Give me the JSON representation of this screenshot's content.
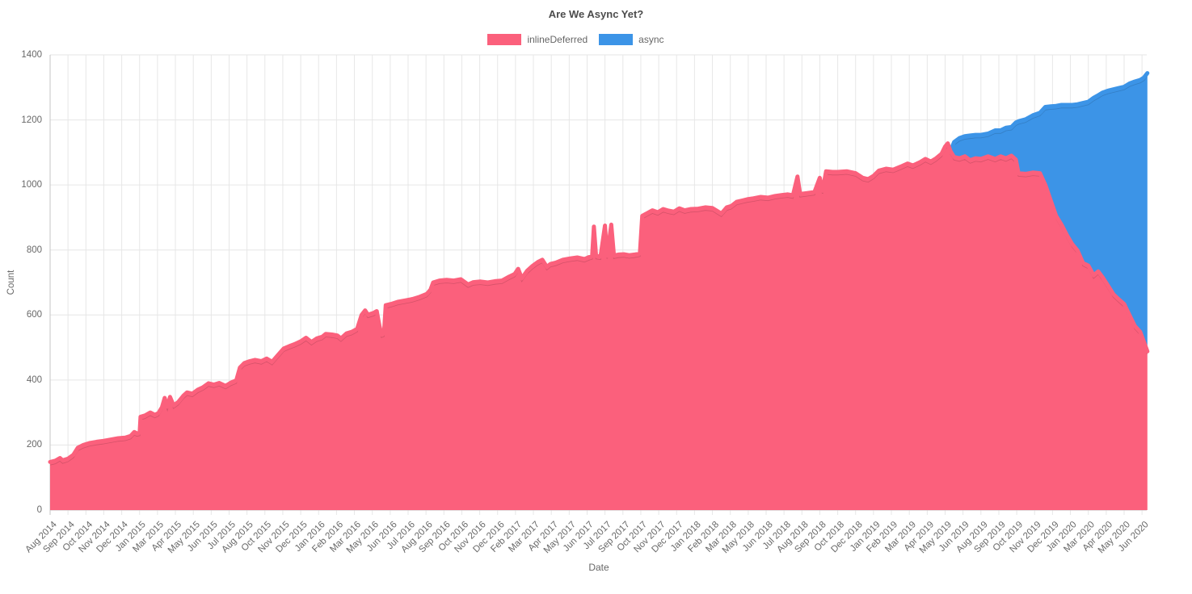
{
  "title": "Are We Async Yet?",
  "legend": [
    {
      "label": "inlineDeferred",
      "color": "#FB607C"
    },
    {
      "label": "async",
      "color": "#3C94E7"
    }
  ],
  "axes": {
    "x_title": "Date",
    "y_title": "Count",
    "y_ticks": [
      0,
      200,
      400,
      600,
      800,
      1000,
      1200,
      1400
    ],
    "x_tick_labels": [
      "Aug 2014",
      "Sep 2014",
      "Oct 2014",
      "Nov 2014",
      "Dec 2014",
      "Jan 2015",
      "Mar 2015",
      "Apr 2015",
      "May 2015",
      "Jun 2015",
      "Jul 2015",
      "Aug 2015",
      "Oct 2015",
      "Nov 2015",
      "Dec 2015",
      "Jan 2016",
      "Feb 2016",
      "Mar 2016",
      "May 2016",
      "Jun 2016",
      "Jul 2016",
      "Aug 2016",
      "Sep 2016",
      "Oct 2016",
      "Nov 2016",
      "Dec 2016",
      "Feb 2017",
      "Mar 2017",
      "Apr 2017",
      "May 2017",
      "Jun 2017",
      "Jul 2017",
      "Sep 2017",
      "Oct 2017",
      "Nov 2017",
      "Dec 2017",
      "Jan 2018",
      "Feb 2018",
      "Mar 2018",
      "May 2018",
      "Jun 2018",
      "Jul 2018",
      "Aug 2018",
      "Sep 2018",
      "Oct 2018",
      "Dec 2018",
      "Jan 2019",
      "Feb 2019",
      "Mar 2019",
      "Apr 2019",
      "May 2019",
      "Jun 2019",
      "Aug 2019",
      "Sep 2019",
      "Oct 2019",
      "Nov 2019",
      "Dec 2019",
      "Jan 2020",
      "Mar 2020",
      "Apr 2020",
      "May 2020",
      "Jun 2020"
    ]
  },
  "chart_data": {
    "type": "area",
    "stacked": true,
    "title": "Are We Async Yet?",
    "xlabel": "Date",
    "ylabel": "Count",
    "ylim": [
      0,
      1400
    ],
    "grid": true,
    "legend_position": "top",
    "x_unit": "tick index (0 = Aug 2014 tick, 61 = Jun 2020 tick; fractional = within interval)",
    "series": [
      {
        "name": "inlineDeferred",
        "color": "#FB607C",
        "points": [
          [
            0,
            148
          ],
          [
            0.3,
            152
          ],
          [
            0.55,
            160
          ],
          [
            0.7,
            153
          ],
          [
            1.0,
            158
          ],
          [
            1.3,
            170
          ],
          [
            1.55,
            192
          ],
          [
            1.85,
            200
          ],
          [
            2.2,
            206
          ],
          [
            2.6,
            210
          ],
          [
            3.0,
            213
          ],
          [
            3.4,
            217
          ],
          [
            3.8,
            221
          ],
          [
            4.2,
            223
          ],
          [
            4.5,
            228
          ],
          [
            4.7,
            240
          ],
          [
            4.85,
            236
          ],
          [
            5.0,
            238
          ],
          [
            5.05,
            287
          ],
          [
            5.3,
            291
          ],
          [
            5.6,
            300
          ],
          [
            5.85,
            293
          ],
          [
            6.05,
            298
          ],
          [
            6.25,
            316
          ],
          [
            6.4,
            345
          ],
          [
            6.55,
            318
          ],
          [
            6.7,
            348
          ],
          [
            6.9,
            322
          ],
          [
            7.15,
            332
          ],
          [
            7.45,
            352
          ],
          [
            7.65,
            362
          ],
          [
            7.95,
            358
          ],
          [
            8.25,
            370
          ],
          [
            8.55,
            378
          ],
          [
            8.85,
            390
          ],
          [
            9.15,
            386
          ],
          [
            9.45,
            391
          ],
          [
            9.8,
            382
          ],
          [
            10.1,
            392
          ],
          [
            10.4,
            399
          ],
          [
            10.6,
            438
          ],
          [
            10.85,
            452
          ],
          [
            11.15,
            458
          ],
          [
            11.45,
            462
          ],
          [
            11.8,
            458
          ],
          [
            12.1,
            466
          ],
          [
            12.4,
            456
          ],
          [
            12.75,
            478
          ],
          [
            13.05,
            497
          ],
          [
            13.35,
            504
          ],
          [
            13.65,
            510
          ],
          [
            14.0,
            519
          ],
          [
            14.3,
            530
          ],
          [
            14.6,
            517
          ],
          [
            14.9,
            528
          ],
          [
            15.2,
            533
          ],
          [
            15.4,
            542
          ],
          [
            15.75,
            540
          ],
          [
            16.05,
            537
          ],
          [
            16.25,
            528
          ],
          [
            16.55,
            543
          ],
          [
            16.85,
            548
          ],
          [
            17.15,
            557
          ],
          [
            17.4,
            600
          ],
          [
            17.6,
            614
          ],
          [
            17.75,
            601
          ],
          [
            18.05,
            606
          ],
          [
            18.25,
            612
          ],
          [
            18.4,
            566
          ],
          [
            18.52,
            540
          ],
          [
            18.65,
            543
          ],
          [
            18.75,
            630
          ],
          [
            19.05,
            634
          ],
          [
            19.45,
            641
          ],
          [
            19.85,
            645
          ],
          [
            20.25,
            649
          ],
          [
            20.65,
            656
          ],
          [
            21.05,
            665
          ],
          [
            21.25,
            678
          ],
          [
            21.4,
            700
          ],
          [
            21.75,
            706
          ],
          [
            22.15,
            708
          ],
          [
            22.55,
            706
          ],
          [
            22.95,
            710
          ],
          [
            23.35,
            694
          ],
          [
            23.65,
            701
          ],
          [
            24.05,
            703
          ],
          [
            24.45,
            700
          ],
          [
            24.85,
            704
          ],
          [
            25.25,
            706
          ],
          [
            25.65,
            718
          ],
          [
            25.95,
            726
          ],
          [
            26.15,
            742
          ],
          [
            26.35,
            713
          ],
          [
            26.65,
            736
          ],
          [
            26.95,
            751
          ],
          [
            27.25,
            763
          ],
          [
            27.5,
            770
          ],
          [
            27.75,
            748
          ],
          [
            27.95,
            757
          ],
          [
            28.25,
            761
          ],
          [
            28.65,
            770
          ],
          [
            29.05,
            774
          ],
          [
            29.45,
            777
          ],
          [
            29.85,
            772
          ],
          [
            30.1,
            778
          ],
          [
            30.28,
            781
          ],
          [
            30.38,
            872
          ],
          [
            30.5,
            782
          ],
          [
            30.75,
            780
          ],
          [
            31.0,
            875
          ],
          [
            31.12,
            782
          ],
          [
            31.35,
            878
          ],
          [
            31.5,
            783
          ],
          [
            31.75,
            786
          ],
          [
            32.05,
            787
          ],
          [
            32.35,
            784
          ],
          [
            32.65,
            786
          ],
          [
            32.95,
            789
          ],
          [
            33.08,
            905
          ],
          [
            33.35,
            913
          ],
          [
            33.65,
            922
          ],
          [
            33.95,
            916
          ],
          [
            34.25,
            926
          ],
          [
            34.55,
            921
          ],
          [
            34.85,
            918
          ],
          [
            35.15,
            928
          ],
          [
            35.45,
            922
          ],
          [
            35.8,
            926
          ],
          [
            36.2,
            927
          ],
          [
            36.6,
            931
          ],
          [
            37.0,
            929
          ],
          [
            37.5,
            912
          ],
          [
            37.8,
            931
          ],
          [
            38.05,
            935
          ],
          [
            38.35,
            948
          ],
          [
            38.65,
            952
          ],
          [
            38.95,
            956
          ],
          [
            39.3,
            959
          ],
          [
            39.7,
            963
          ],
          [
            40.1,
            961
          ],
          [
            40.5,
            966
          ],
          [
            40.9,
            969
          ],
          [
            41.2,
            971
          ],
          [
            41.5,
            968
          ],
          [
            41.75,
            1026
          ],
          [
            41.9,
            972
          ],
          [
            42.3,
            975
          ],
          [
            42.7,
            978
          ],
          [
            43.0,
            1022
          ],
          [
            43.15,
            982
          ],
          [
            43.35,
            1042
          ],
          [
            43.7,
            1040
          ],
          [
            44.0,
            1040
          ],
          [
            44.5,
            1042
          ],
          [
            45.0,
            1036
          ],
          [
            45.4,
            1022
          ],
          [
            45.7,
            1018
          ],
          [
            46.0,
            1028
          ],
          [
            46.3,
            1044
          ],
          [
            46.7,
            1050
          ],
          [
            47.1,
            1047
          ],
          [
            47.5,
            1056
          ],
          [
            47.9,
            1066
          ],
          [
            48.2,
            1060
          ],
          [
            48.6,
            1070
          ],
          [
            48.9,
            1080
          ],
          [
            49.2,
            1072
          ],
          [
            49.5,
            1082
          ],
          [
            49.8,
            1096
          ],
          [
            50.0,
            1118
          ],
          [
            50.15,
            1128
          ],
          [
            50.3,
            1104
          ],
          [
            50.5,
            1086
          ],
          [
            50.8,
            1082
          ],
          [
            51.1,
            1088
          ],
          [
            51.4,
            1076
          ],
          [
            51.7,
            1082
          ],
          [
            52.0,
            1080
          ],
          [
            52.4,
            1088
          ],
          [
            52.8,
            1080
          ],
          [
            53.1,
            1088
          ],
          [
            53.4,
            1082
          ],
          [
            53.7,
            1090
          ],
          [
            53.95,
            1078
          ],
          [
            54.1,
            1036
          ],
          [
            54.5,
            1034
          ],
          [
            54.9,
            1038
          ],
          [
            55.3,
            1036
          ],
          [
            55.6,
            1000
          ],
          [
            55.9,
            952
          ],
          [
            56.2,
            905
          ],
          [
            56.5,
            878
          ],
          [
            56.8,
            846
          ],
          [
            57.1,
            818
          ],
          [
            57.4,
            798
          ],
          [
            57.7,
            760
          ],
          [
            58.0,
            752
          ],
          [
            58.3,
            722
          ],
          [
            58.55,
            734
          ],
          [
            58.8,
            716
          ],
          [
            59.1,
            690
          ],
          [
            59.4,
            664
          ],
          [
            59.7,
            648
          ],
          [
            60.0,
            634
          ],
          [
            60.3,
            600
          ],
          [
            60.6,
            566
          ],
          [
            60.9,
            548
          ],
          [
            61.1,
            518
          ],
          [
            61.3,
            488
          ]
        ]
      },
      {
        "name": "async",
        "color": "#3C94E7",
        "points": [
          [
            50.3,
            0
          ],
          [
            50.5,
            46
          ],
          [
            50.8,
            62
          ],
          [
            51.1,
            62
          ],
          [
            51.4,
            76
          ],
          [
            51.7,
            72
          ],
          [
            52.0,
            74
          ],
          [
            52.4,
            70
          ],
          [
            52.8,
            88
          ],
          [
            53.1,
            80
          ],
          [
            53.4,
            94
          ],
          [
            53.7,
            88
          ],
          [
            53.95,
            114
          ],
          [
            54.1,
            160
          ],
          [
            54.5,
            168
          ],
          [
            54.9,
            176
          ],
          [
            55.3,
            186
          ],
          [
            55.6,
            240
          ],
          [
            55.9,
            290
          ],
          [
            56.2,
            338
          ],
          [
            56.5,
            368
          ],
          [
            56.8,
            400
          ],
          [
            57.1,
            428
          ],
          [
            57.4,
            450
          ],
          [
            57.7,
            492
          ],
          [
            58.0,
            504
          ],
          [
            58.3,
            546
          ],
          [
            58.55,
            542
          ],
          [
            58.8,
            568
          ],
          [
            59.1,
            600
          ],
          [
            59.4,
            630
          ],
          [
            59.7,
            650
          ],
          [
            60.0,
            668
          ],
          [
            60.3,
            712
          ],
          [
            60.6,
            752
          ],
          [
            60.9,
            775
          ],
          [
            61.1,
            812
          ],
          [
            61.3,
            856
          ]
        ]
      }
    ]
  }
}
